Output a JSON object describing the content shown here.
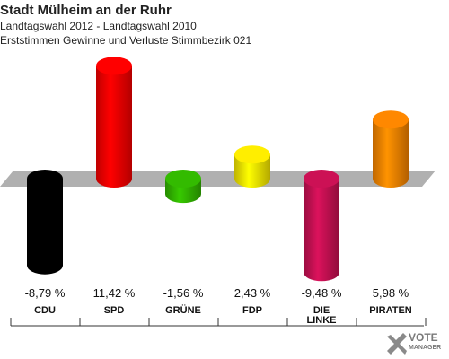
{
  "header": {
    "title": "Stadt Mülheim an der Ruhr",
    "subtitle": "Landtagswahl 2012 - Landtagswahl 2010",
    "description": "Erststimmen Gewinne und Verluste Stimmbezirk 021"
  },
  "chart_data": {
    "type": "bar",
    "categories": [
      "CDU",
      "SPD",
      "GRÜNE",
      "FDP",
      "DIE LINKE",
      "PIRATEN"
    ],
    "values": [
      -8.79,
      11.42,
      -1.56,
      2.43,
      -9.48,
      5.98
    ],
    "value_labels": [
      "-8,79 %",
      "11,42 %",
      "-1,56 %",
      "2,43 %",
      "-9,48 %",
      "5,98 %"
    ],
    "colors": [
      "#000000",
      "#ff0000",
      "#33bb00",
      "#ffee00",
      "#cc1155",
      "#ff8800"
    ],
    "ylim": [
      -10.5,
      12.5
    ],
    "grid": false,
    "legend": "none"
  },
  "logo": {
    "line1": "VOTE",
    "line2": "MANAGER",
    "icon": "checkmark-x-icon"
  }
}
